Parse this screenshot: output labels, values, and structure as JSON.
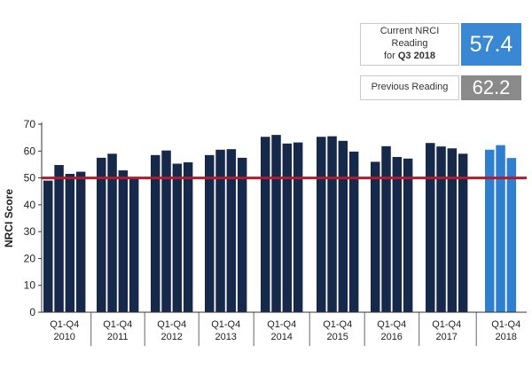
{
  "callouts": {
    "current_label_line1": "Current NRCI Reading",
    "current_label_line2": "for",
    "current_period": "Q3 2018",
    "current_value": "57.4",
    "previous_label": "Previous Reading",
    "previous_value": "62.2"
  },
  "colors": {
    "bar": "#16294a",
    "bar_highlight": "#2f7fd0",
    "reference_line": "#b01c2e",
    "current_box": "#3a87d4",
    "previous_box": "#8a8a8a"
  },
  "chart_data": {
    "type": "bar",
    "title": "",
    "xlabel": "",
    "ylabel": "NRCI Score",
    "ylim": [
      0,
      70
    ],
    "yticks": [
      0,
      10,
      20,
      30,
      40,
      50,
      60,
      70
    ],
    "reference_line": 50,
    "grid": false,
    "groups": [
      {
        "label_line1": "Q1-Q4",
        "label_line2": "2010",
        "values": [
          49.0,
          54.8,
          51.5,
          52.3
        ],
        "highlight": false
      },
      {
        "label_line1": "Q1-Q4",
        "label_line2": "2011",
        "values": [
          57.5,
          59.0,
          52.8,
          50.0
        ],
        "highlight": false
      },
      {
        "label_line1": "Q1-Q4",
        "label_line2": "2012",
        "values": [
          58.5,
          60.2,
          55.3,
          55.8
        ],
        "highlight": false
      },
      {
        "label_line1": "Q1-Q4",
        "label_line2": "2013",
        "values": [
          58.5,
          60.5,
          60.7,
          57.5
        ],
        "highlight": false
      },
      {
        "label_line1": "Q1-Q4",
        "label_line2": "2014",
        "values": [
          65.3,
          66.0,
          62.8,
          63.2
        ],
        "highlight": false
      },
      {
        "label_line1": "Q1-Q4",
        "label_line2": "2015",
        "values": [
          65.3,
          65.5,
          63.8,
          59.8
        ],
        "highlight": false
      },
      {
        "label_line1": "Q1-Q4",
        "label_line2": "2016",
        "values": [
          56.0,
          61.8,
          57.8,
          57.2
        ],
        "highlight": false
      },
      {
        "label_line1": "Q1-Q4",
        "label_line2": "2017",
        "values": [
          63.0,
          61.7,
          61.0,
          59.0
        ],
        "highlight": false
      },
      {
        "label_line1": "Q1-Q4",
        "label_line2": "2018",
        "values": [
          60.5,
          62.2,
          57.4
        ],
        "highlight": true
      }
    ]
  }
}
